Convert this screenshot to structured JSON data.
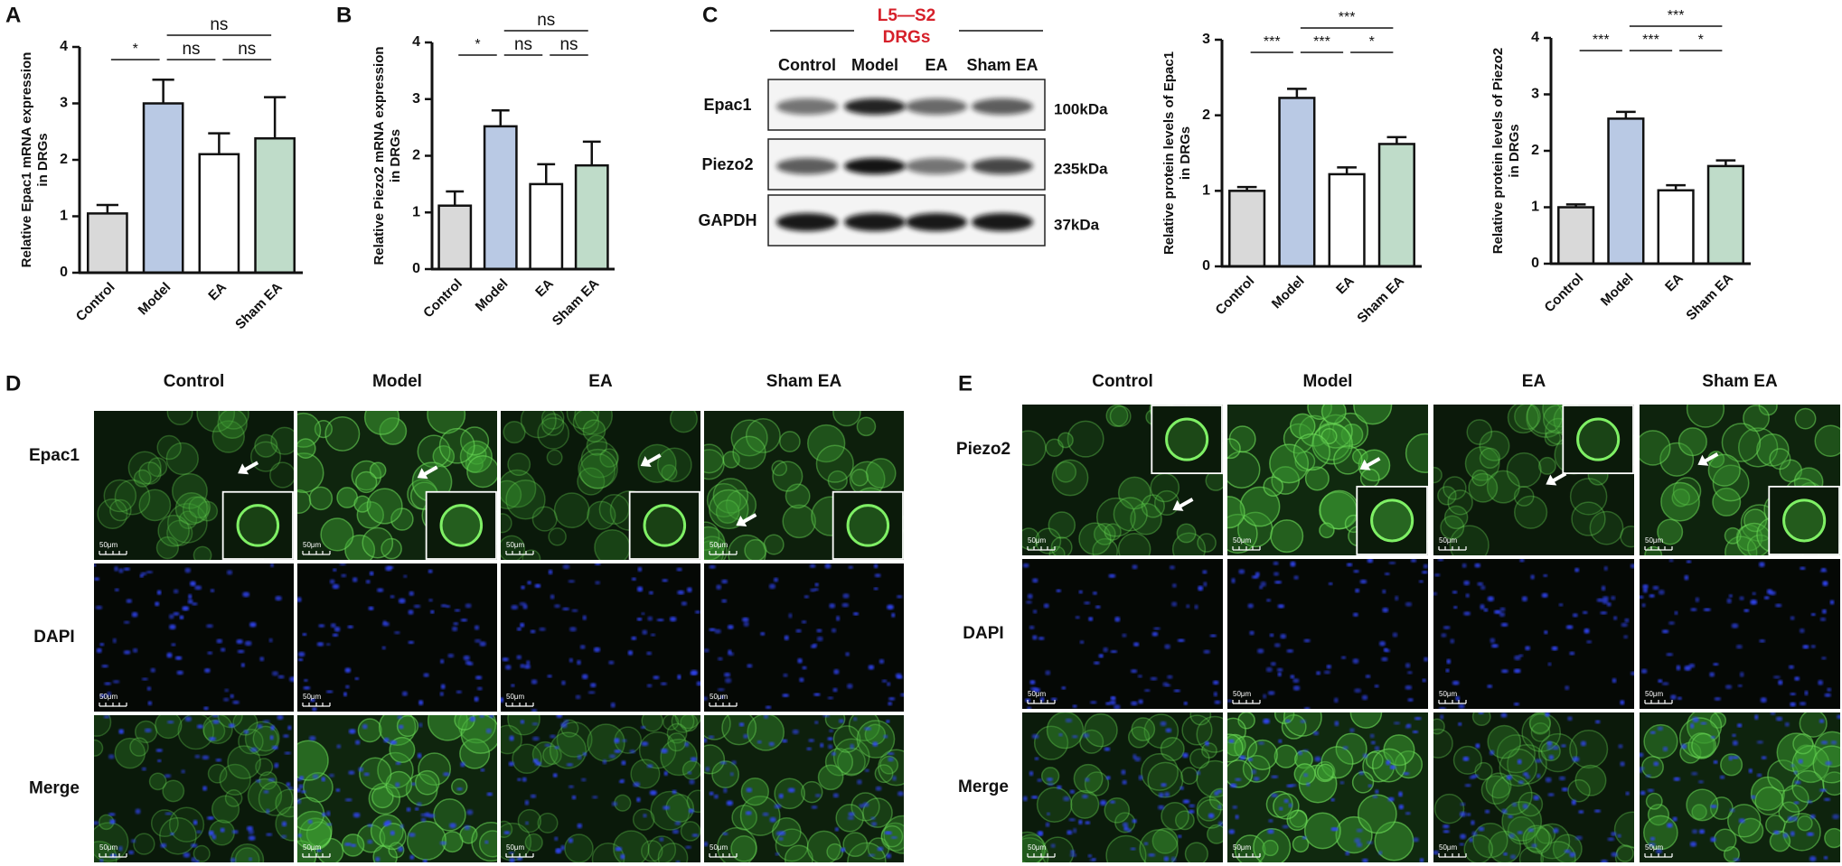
{
  "panel_labels": [
    "A",
    "B",
    "C",
    "D",
    "E"
  ],
  "chart_data": [
    {
      "type": "bar",
      "ylabel": [
        "Relative Epac1 mRNA expression",
        "in DRGs"
      ],
      "categories": [
        "Control",
        "Model",
        "EA",
        "Sham EA"
      ],
      "values": [
        1.05,
        3.0,
        2.1,
        2.38
      ],
      "errors": [
        0.15,
        0.42,
        0.37,
        0.73
      ],
      "colors": [
        "#d9d9d9",
        "#b9c9e4",
        "#ffffff",
        "#bfdcc9"
      ],
      "ylim": [
        0,
        4
      ],
      "yticks": [
        0,
        1,
        2,
        3,
        4
      ],
      "significance": [
        {
          "label": "*",
          "between": [
            "Control",
            "Model"
          ]
        },
        {
          "label": "ns",
          "between": [
            "Model",
            "EA"
          ]
        },
        {
          "label": "ns",
          "between": [
            "EA",
            "Sham EA"
          ]
        },
        {
          "label": "ns",
          "between": [
            "Model",
            "Sham EA"
          ]
        }
      ]
    },
    {
      "type": "bar",
      "ylabel": [
        "Relative Piezo2 mRNA expression",
        "in DRGs"
      ],
      "categories": [
        "Control",
        "Model",
        "EA",
        "Sham EA"
      ],
      "values": [
        1.12,
        2.52,
        1.5,
        1.83
      ],
      "errors": [
        0.25,
        0.28,
        0.35,
        0.42
      ],
      "colors": [
        "#d9d9d9",
        "#b9c9e4",
        "#ffffff",
        "#bfdcc9"
      ],
      "ylim": [
        0,
        4
      ],
      "yticks": [
        0,
        1,
        2,
        3,
        4
      ],
      "significance": [
        {
          "label": "*",
          "between": [
            "Control",
            "Model"
          ]
        },
        {
          "label": "ns",
          "between": [
            "Model",
            "EA"
          ]
        },
        {
          "label": "ns",
          "between": [
            "EA",
            "Sham EA"
          ]
        },
        {
          "label": "ns",
          "between": [
            "Model",
            "Sham EA"
          ]
        }
      ]
    },
    {
      "type": "bar",
      "ylabel": [
        "Relative protein levels of Epac1",
        "in DRGs"
      ],
      "categories": [
        "Control",
        "Model",
        "EA",
        "Sham EA"
      ],
      "values": [
        1.0,
        2.23,
        1.22,
        1.62
      ],
      "errors": [
        0.05,
        0.12,
        0.09,
        0.09
      ],
      "colors": [
        "#d9d9d9",
        "#b9c9e4",
        "#ffffff",
        "#bfdcc9"
      ],
      "ylim": [
        0,
        3
      ],
      "yticks": [
        0,
        1,
        2,
        3
      ],
      "significance": [
        {
          "label": "***",
          "between": [
            "Control",
            "Model"
          ]
        },
        {
          "label": "***",
          "between": [
            "Model",
            "EA"
          ]
        },
        {
          "label": "*",
          "between": [
            "EA",
            "Sham EA"
          ]
        },
        {
          "label": "***",
          "between": [
            "Model",
            "Sham EA"
          ]
        }
      ]
    },
    {
      "type": "bar",
      "ylabel": [
        "Relative protein levels of Piezo2",
        "in DRGs"
      ],
      "categories": [
        "Control",
        "Model",
        "EA",
        "Sham EA"
      ],
      "values": [
        1.0,
        2.57,
        1.3,
        1.73
      ],
      "errors": [
        0.05,
        0.12,
        0.09,
        0.1
      ],
      "colors": [
        "#d9d9d9",
        "#b9c9e4",
        "#ffffff",
        "#bfdcc9"
      ],
      "ylim": [
        0,
        4
      ],
      "yticks": [
        0,
        1,
        2,
        3,
        4
      ],
      "significance": [
        {
          "label": "***",
          "between": [
            "Control",
            "Model"
          ]
        },
        {
          "label": "***",
          "between": [
            "Model",
            "EA"
          ]
        },
        {
          "label": "*",
          "between": [
            "EA",
            "Sham EA"
          ]
        },
        {
          "label": "***",
          "between": [
            "Model",
            "Sham EA"
          ]
        }
      ]
    }
  ],
  "blot": {
    "region": [
      "L5—S2",
      "DRGs"
    ],
    "lanes": [
      "Control",
      "Model",
      "EA",
      "Sham EA"
    ],
    "rows": [
      {
        "label": "Epac1",
        "size": "100kDa"
      },
      {
        "label": "Piezo2",
        "size": "235kDa"
      },
      {
        "label": "GAPDH",
        "size": "37kDa"
      }
    ]
  },
  "panel_d": {
    "columns": [
      "Control",
      "Model",
      "EA",
      "Sham EA"
    ],
    "rows": [
      "Epac1",
      "DAPI",
      "Merge"
    ]
  },
  "panel_e": {
    "columns": [
      "Control",
      "Model",
      "EA",
      "Sham EA"
    ],
    "rows": [
      "Piezo2",
      "DAPI",
      "Merge"
    ]
  },
  "scale_bar": "50μm"
}
